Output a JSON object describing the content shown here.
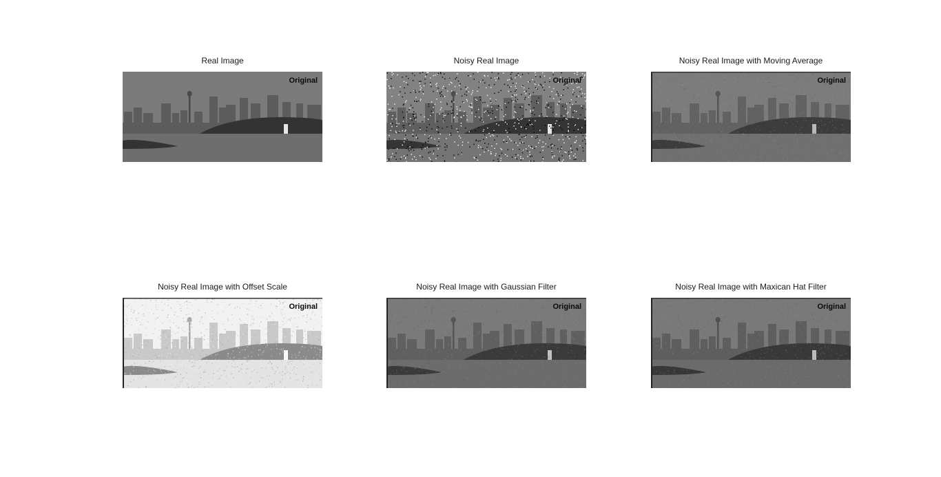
{
  "figure": {
    "panels": [
      {
        "title": "Real Image",
        "watermark": "Original",
        "variant": "real",
        "palette": {
          "sky": "#7b7b7b",
          "city": "#5c5c5c",
          "hill": "#333333",
          "water": "#6e6e6e",
          "tower": "#4a4a4a",
          "lighthouse": "#e6e6e6",
          "noise": "none"
        }
      },
      {
        "title": "Noisy Real Image",
        "watermark": "Original",
        "variant": "noisy",
        "palette": {
          "sky": "#828282",
          "city": "#5f5f5f",
          "hill": "#353535",
          "water": "#747474",
          "tower": "#4d4d4d",
          "lighthouse": "#e6e6e6",
          "noise": "salt-pepper"
        }
      },
      {
        "title": "Noisy Real Image with Moving Average",
        "watermark": "Original",
        "variant": "moving-average",
        "palette": {
          "sky": "#7c7c7c",
          "city": "#626262",
          "hill": "#3c3c3c",
          "water": "#707070",
          "tower": "#555555",
          "lighthouse": "#b8b8b8",
          "noise": "fine"
        }
      },
      {
        "title": "Noisy Real Image with Offset Scale",
        "watermark": "Original",
        "variant": "offset-scale",
        "palette": {
          "sky": "#f2f2f2",
          "city": "#c9c9c9",
          "hill": "#8a8a8a",
          "water": "#e4e4e4",
          "tower": "#a8a8a8",
          "lighthouse": "#ffffff",
          "noise": "bright"
        }
      },
      {
        "title": "Noisy Real Image with Gaussian Filter",
        "watermark": "Original",
        "variant": "gaussian",
        "palette": {
          "sky": "#7a7a7a",
          "city": "#606060",
          "hill": "#3a3a3a",
          "water": "#6c6c6c",
          "tower": "#535353",
          "lighthouse": "#c2c2c2",
          "noise": "fine"
        }
      },
      {
        "title": "Noisy Real Image with Maxican Hat Filter",
        "watermark": "Original",
        "variant": "mexican-hat",
        "palette": {
          "sky": "#797979",
          "city": "#5e5e5e",
          "hill": "#383838",
          "water": "#6b6b6b",
          "tower": "#515151",
          "lighthouse": "#bcbcbc",
          "noise": "fine"
        }
      }
    ]
  }
}
